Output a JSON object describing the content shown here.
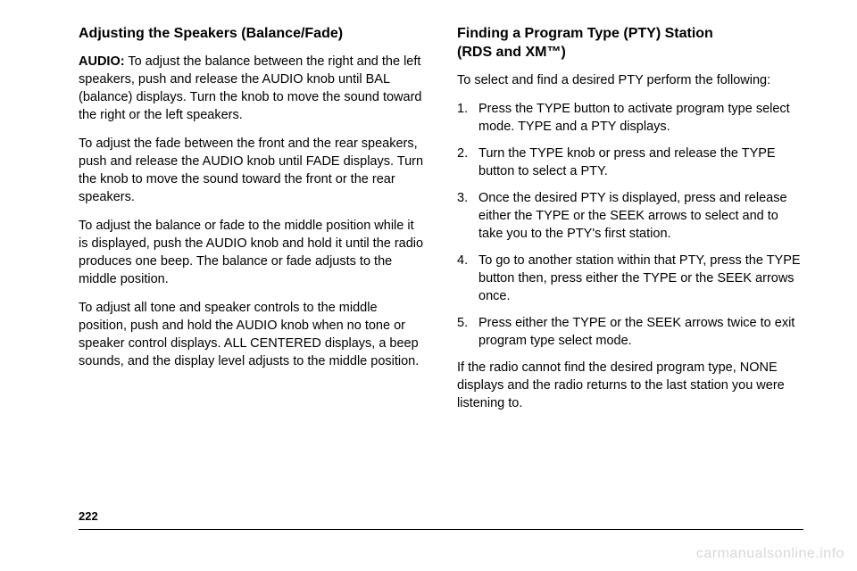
{
  "left": {
    "heading": "Adjusting the Speakers (Balance/Fade)",
    "p1_label": "AUDIO:",
    "p1": " To adjust the balance between the right and the left speakers, push and release the AUDIO knob until BAL (balance) displays. Turn the knob to move the sound toward the right or the left speakers.",
    "p2": "To adjust the fade between the front and the rear speakers, push and release the AUDIO knob until FADE displays. Turn the knob to move the sound toward the front or the rear speakers.",
    "p3": "To adjust the balance or fade to the middle position while it is displayed, push the AUDIO knob and hold it until the radio produces one beep. The balance or fade adjusts to the middle position.",
    "p4": "To adjust all tone and speaker controls to the middle position, push and hold the AUDIO knob when no tone or speaker control displays. ALL CENTERED displays, a beep sounds, and the display level adjusts to the middle position."
  },
  "right": {
    "heading_a": "Finding a Program Type (PTY) Station",
    "heading_b": "(RDS and XM™)",
    "intro": "To select and find a desired PTY perform the following:",
    "steps": [
      "Press the TYPE button to activate program type select mode. TYPE and a PTY displays.",
      "Turn the TYPE knob or press and release the TYPE button to select a PTY.",
      "Once the desired PTY is displayed, press and release either the TYPE or the SEEK arrows to select and to take you to the PTY's first station.",
      "To go to another station within that PTY, press the TYPE button then, press either the TYPE or the SEEK arrows once.",
      "Press either the TYPE or the SEEK arrows twice to exit program type select mode."
    ],
    "outro": "If the radio cannot find the desired program type, NONE displays and the radio returns to the last station you were listening to."
  },
  "page_number": "222",
  "footer": "carmanualsonline.info"
}
